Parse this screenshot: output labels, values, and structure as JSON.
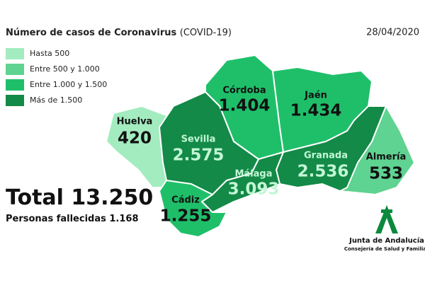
{
  "header": {
    "title": "Número de casos de Coronavirus",
    "title_suffix": "(COVID-19)",
    "date": "28/04/2020"
  },
  "legend": [
    {
      "label": "Hasta 500",
      "color": "#a3ecbf"
    },
    {
      "label": "Entre 500 y 1.000",
      "color": "#5fd391"
    },
    {
      "label": "Entre 1.000 y 1.500",
      "color": "#1fbf6a"
    },
    {
      "label": "Más de 1.500",
      "color": "#138a47"
    }
  ],
  "provinces": [
    {
      "name": "Córdoba",
      "cases": "1.404",
      "color": "#1fbf6a"
    },
    {
      "name": "Jaén",
      "cases": "1.434",
      "color": "#1fbf6a"
    },
    {
      "name": "Huelva",
      "cases": "420",
      "color": "#a3ecbf"
    },
    {
      "name": "Sevilla",
      "cases": "2.575",
      "color": "#138a47"
    },
    {
      "name": "Granada",
      "cases": "2.536",
      "color": "#138a47"
    },
    {
      "name": "Almería",
      "cases": "533",
      "color": "#5fd391"
    },
    {
      "name": "Málaga",
      "cases": "3.093",
      "color": "#138a47"
    },
    {
      "name": "Cádiz",
      "cases": "1.255",
      "color": "#1fbf6a"
    }
  ],
  "total": {
    "label": "Total",
    "value": "13.250"
  },
  "deaths": {
    "label": "Personas fallecidas",
    "value": "1.168"
  },
  "logo": {
    "name": "Junta de Andalucía",
    "department": "Consejería de Salud y Familias"
  }
}
